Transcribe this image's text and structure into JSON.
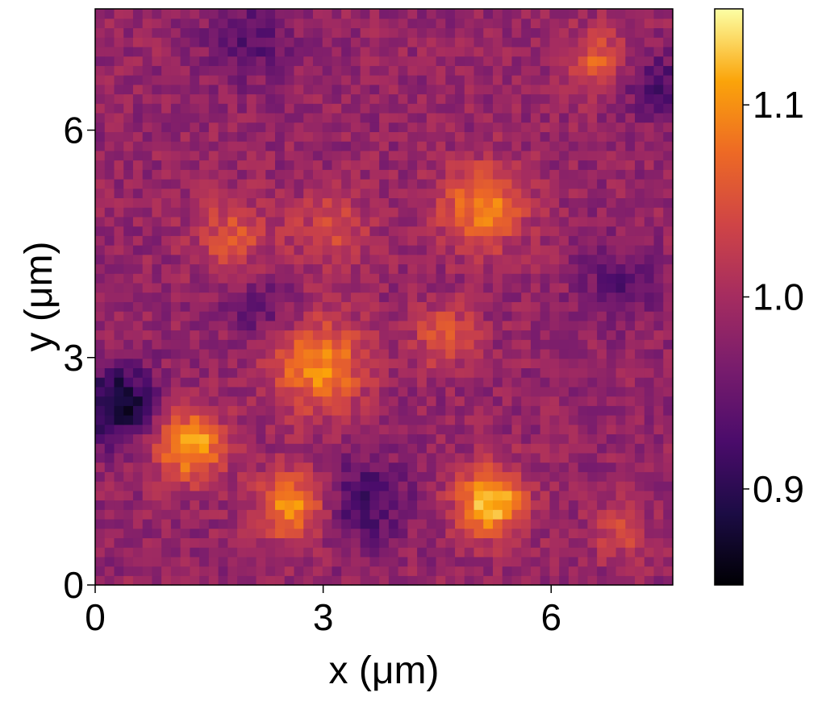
{
  "chart_data": {
    "type": "heatmap",
    "title": "",
    "xlabel": "x (μm)",
    "ylabel": "y (μm)",
    "xlim": [
      0,
      7.6
    ],
    "ylim": [
      0,
      7.6
    ],
    "x_ticks": [
      0,
      3,
      6
    ],
    "y_ticks": [
      0,
      3,
      6
    ],
    "x_tick_labels": [
      "0",
      "3",
      "6"
    ],
    "y_tick_labels": [
      "0",
      "3",
      "6"
    ],
    "grid_cells": [
      61,
      61
    ],
    "colormap": "inferno",
    "colorbar": {
      "range": [
        0.85,
        1.15
      ],
      "ticks": [
        0.9,
        1.0,
        1.1
      ],
      "tick_labels": [
        "0.9",
        "1.0",
        "1.1"
      ]
    },
    "baseline_value": 0.985,
    "features": [
      {
        "kind": "bright",
        "center": [
          1.25,
          1.85
        ],
        "radius": 0.45,
        "peak": 1.12
      },
      {
        "kind": "bright",
        "center": [
          2.6,
          1.05
        ],
        "radius": 0.45,
        "peak": 1.1
      },
      {
        "kind": "bright",
        "center": [
          2.95,
          2.9
        ],
        "radius": 0.6,
        "peak": 1.1
      },
      {
        "kind": "bright",
        "center": [
          4.6,
          3.3
        ],
        "radius": 0.4,
        "peak": 1.06
      },
      {
        "kind": "bright",
        "center": [
          5.2,
          1.1
        ],
        "radius": 0.45,
        "peak": 1.13
      },
      {
        "kind": "bright",
        "center": [
          5.1,
          5.0
        ],
        "radius": 0.55,
        "peak": 1.09
      },
      {
        "kind": "bright",
        "center": [
          1.8,
          4.6
        ],
        "radius": 0.5,
        "peak": 1.05
      },
      {
        "kind": "bright",
        "center": [
          3.1,
          4.7
        ],
        "radius": 0.5,
        "peak": 1.04
      },
      {
        "kind": "bright",
        "center": [
          6.6,
          6.9
        ],
        "radius": 0.4,
        "peak": 1.06
      },
      {
        "kind": "bright",
        "center": [
          6.9,
          0.7
        ],
        "radius": 0.35,
        "peak": 1.04
      },
      {
        "kind": "dark",
        "center": [
          0.3,
          2.4
        ],
        "radius": 0.5,
        "peak": 0.87
      },
      {
        "kind": "dark",
        "center": [
          3.55,
          1.1
        ],
        "radius": 0.55,
        "peak": 0.92
      },
      {
        "kind": "dark",
        "center": [
          2.0,
          7.2
        ],
        "radius": 0.5,
        "peak": 0.93
      },
      {
        "kind": "dark",
        "center": [
          7.4,
          6.6
        ],
        "radius": 0.4,
        "peak": 0.92
      },
      {
        "kind": "dark",
        "center": [
          2.2,
          3.7
        ],
        "radius": 0.45,
        "peak": 0.94
      },
      {
        "kind": "dark",
        "center": [
          6.9,
          4.0
        ],
        "radius": 0.5,
        "peak": 0.94
      }
    ]
  }
}
